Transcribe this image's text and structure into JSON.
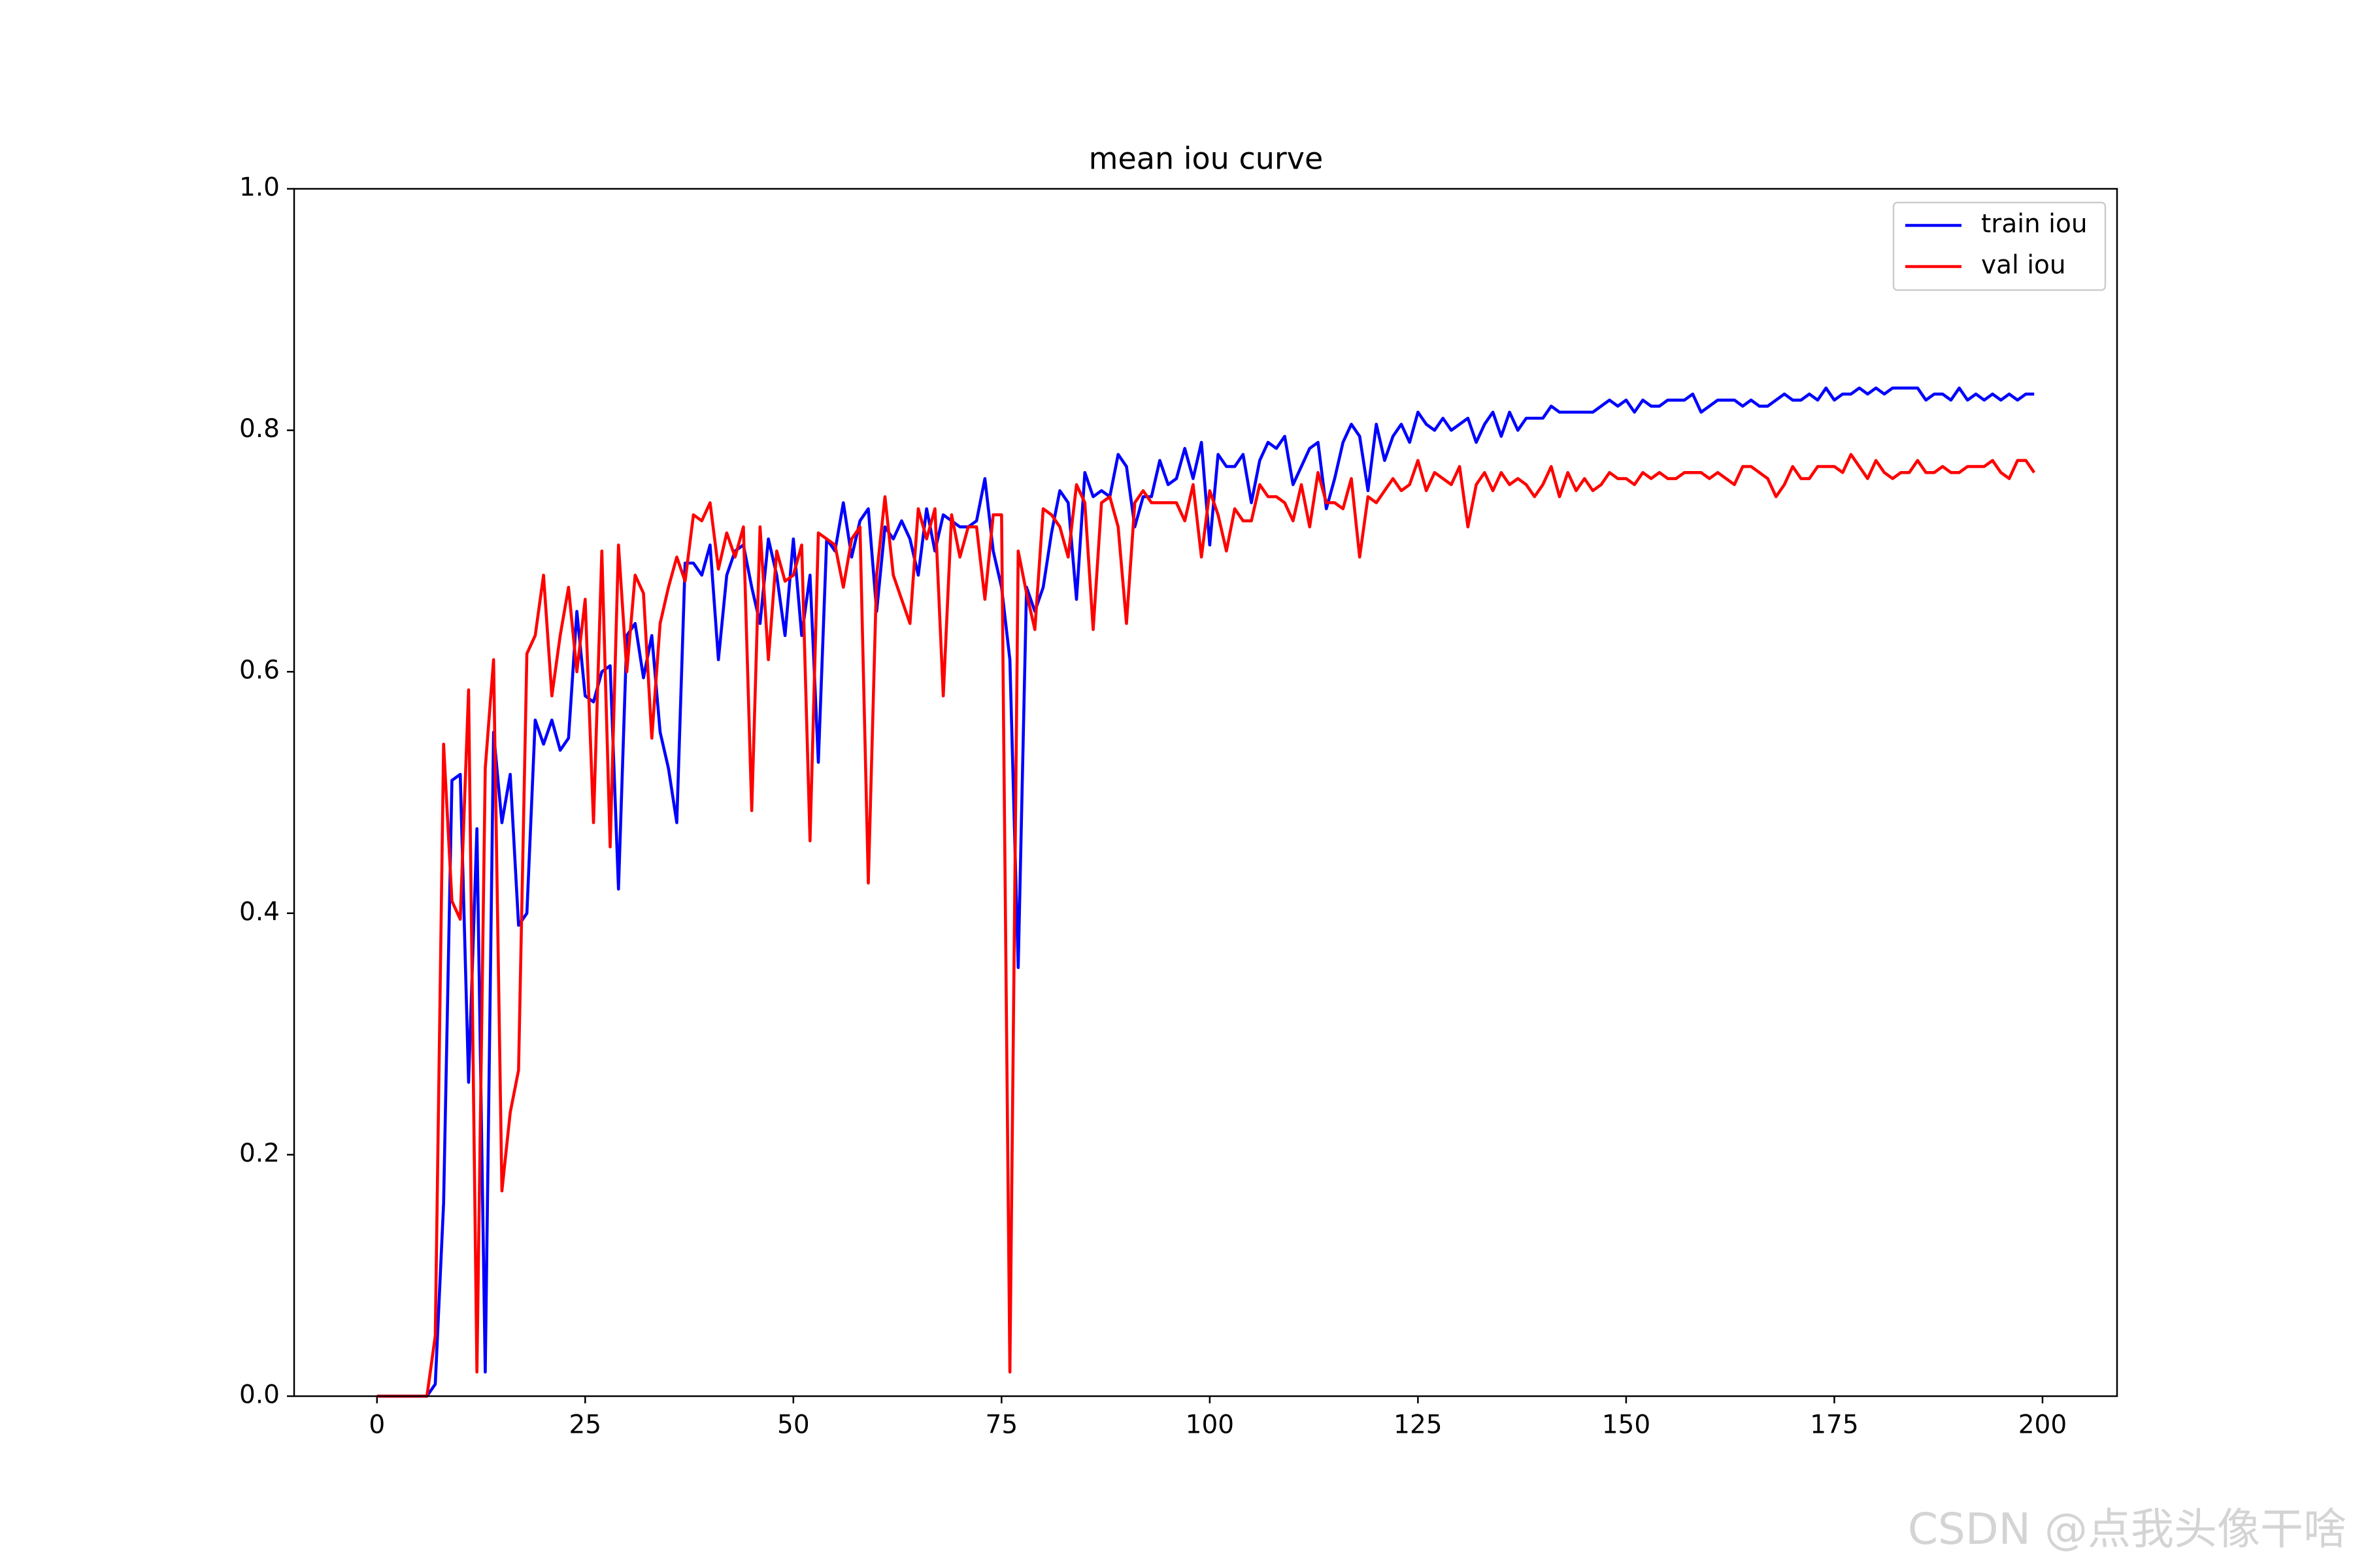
{
  "chart_data": {
    "type": "line",
    "title": "mean iou curve",
    "x": [
      0,
      1,
      2,
      3,
      4,
      5,
      6,
      7,
      8,
      9,
      10,
      11,
      12,
      13,
      14,
      15,
      16,
      17,
      18,
      19,
      20,
      21,
      22,
      23,
      24,
      25,
      26,
      27,
      28,
      29,
      30,
      31,
      32,
      33,
      34,
      35,
      36,
      37,
      38,
      39,
      40,
      41,
      42,
      43,
      44,
      45,
      46,
      47,
      48,
      49,
      50,
      51,
      52,
      53,
      54,
      55,
      56,
      57,
      58,
      59,
      60,
      61,
      62,
      63,
      64,
      65,
      66,
      67,
      68,
      69,
      70,
      71,
      72,
      73,
      74,
      75,
      76,
      77,
      78,
      79,
      80,
      81,
      82,
      83,
      84,
      85,
      86,
      87,
      88,
      89,
      90,
      91,
      92,
      93,
      94,
      95,
      96,
      97,
      98,
      99,
      100,
      101,
      102,
      103,
      104,
      105,
      106,
      107,
      108,
      109,
      110,
      111,
      112,
      113,
      114,
      115,
      116,
      117,
      118,
      119,
      120,
      121,
      122,
      123,
      124,
      125,
      126,
      127,
      128,
      129,
      130,
      131,
      132,
      133,
      134,
      135,
      136,
      137,
      138,
      139,
      140,
      141,
      142,
      143,
      144,
      145,
      146,
      147,
      148,
      149,
      150,
      151,
      152,
      153,
      154,
      155,
      156,
      157,
      158,
      159,
      160,
      161,
      162,
      163,
      164,
      165,
      166,
      167,
      168,
      169,
      170,
      171,
      172,
      173,
      174,
      175,
      176,
      177,
      178,
      179,
      180,
      181,
      182,
      183,
      184,
      185,
      186,
      187,
      188,
      189,
      190,
      191,
      192,
      193,
      194,
      195,
      196,
      197,
      198,
      199
    ],
    "series": [
      {
        "name": "train iou",
        "color": "#0000ff",
        "values": [
          0,
          0,
          0,
          0,
          0,
          0,
          0,
          0.01,
          0.16,
          0.51,
          0.515,
          0.26,
          0.47,
          0.02,
          0.55,
          0.475,
          0.515,
          0.39,
          0.4,
          0.56,
          0.54,
          0.56,
          0.535,
          0.545,
          0.65,
          0.58,
          0.575,
          0.6,
          0.605,
          0.42,
          0.63,
          0.64,
          0.595,
          0.63,
          0.55,
          0.52,
          0.475,
          0.69,
          0.69,
          0.68,
          0.705,
          0.61,
          0.68,
          0.7,
          0.705,
          0.67,
          0.64,
          0.71,
          0.68,
          0.63,
          0.71,
          0.63,
          0.68,
          0.525,
          0.71,
          0.7,
          0.74,
          0.695,
          0.725,
          0.735,
          0.65,
          0.72,
          0.71,
          0.725,
          0.71,
          0.68,
          0.735,
          0.7,
          0.73,
          0.725,
          0.72,
          0.72,
          0.725,
          0.76,
          0.7,
          0.67,
          0.61,
          0.355,
          0.67,
          0.65,
          0.67,
          0.715,
          0.75,
          0.74,
          0.66,
          0.765,
          0.745,
          0.75,
          0.745,
          0.78,
          0.77,
          0.72,
          0.745,
          0.745,
          0.775,
          0.755,
          0.76,
          0.785,
          0.76,
          0.79,
          0.705,
          0.78,
          0.77,
          0.77,
          0.78,
          0.74,
          0.775,
          0.79,
          0.785,
          0.795,
          0.755,
          0.77,
          0.785,
          0.79,
          0.735,
          0.76,
          0.79,
          0.805,
          0.795,
          0.75,
          0.805,
          0.775,
          0.795,
          0.805,
          0.79,
          0.815,
          0.805,
          0.8,
          0.81,
          0.8,
          0.805,
          0.81,
          0.79,
          0.805,
          0.815,
          0.795,
          0.815,
          0.8,
          0.81,
          0.81,
          0.81,
          0.82,
          0.815,
          0.815,
          0.815,
          0.815,
          0.815,
          0.82,
          0.825,
          0.82,
          0.825,
          0.815,
          0.825,
          0.82,
          0.82,
          0.825,
          0.825,
          0.825,
          0.83,
          0.815,
          0.82,
          0.825,
          0.825,
          0.825,
          0.82,
          0.825,
          0.82,
          0.82,
          0.825,
          0.83,
          0.825,
          0.825,
          0.83,
          0.825,
          0.835,
          0.825,
          0.83,
          0.83,
          0.835,
          0.83,
          0.835,
          0.83,
          0.835,
          0.835,
          0.835,
          0.835,
          0.825,
          0.83,
          0.83,
          0.825,
          0.835,
          0.825,
          0.83,
          0.825,
          0.83,
          0.825,
          0.83,
          0.825,
          0.83,
          0.83
        ]
      },
      {
        "name": "val iou",
        "color": "#ff0000",
        "values": [
          0,
          0,
          0,
          0,
          0,
          0,
          0,
          0.05,
          0.54,
          0.41,
          0.395,
          0.585,
          0.02,
          0.52,
          0.61,
          0.17,
          0.235,
          0.27,
          0.615,
          0.63,
          0.68,
          0.58,
          0.63,
          0.67,
          0.6,
          0.66,
          0.475,
          0.7,
          0.455,
          0.705,
          0.6,
          0.68,
          0.665,
          0.545,
          0.64,
          0.67,
          0.695,
          0.675,
          0.73,
          0.725,
          0.74,
          0.685,
          0.715,
          0.695,
          0.72,
          0.485,
          0.72,
          0.61,
          0.7,
          0.675,
          0.68,
          0.705,
          0.46,
          0.715,
          0.71,
          0.705,
          0.67,
          0.71,
          0.72,
          0.425,
          0.68,
          0.745,
          0.68,
          0.66,
          0.64,
          0.735,
          0.71,
          0.735,
          0.58,
          0.73,
          0.695,
          0.72,
          0.72,
          0.66,
          0.73,
          0.73,
          0.02,
          0.7,
          0.665,
          0.635,
          0.735,
          0.73,
          0.72,
          0.695,
          0.755,
          0.74,
          0.635,
          0.74,
          0.745,
          0.72,
          0.64,
          0.74,
          0.75,
          0.74,
          0.74,
          0.74,
          0.74,
          0.725,
          0.755,
          0.695,
          0.75,
          0.73,
          0.7,
          0.735,
          0.725,
          0.725,
          0.755,
          0.745,
          0.745,
          0.74,
          0.725,
          0.755,
          0.72,
          0.765,
          0.74,
          0.74,
          0.735,
          0.76,
          0.695,
          0.745,
          0.74,
          0.75,
          0.76,
          0.75,
          0.755,
          0.775,
          0.75,
          0.765,
          0.76,
          0.755,
          0.77,
          0.72,
          0.755,
          0.765,
          0.75,
          0.765,
          0.755,
          0.76,
          0.755,
          0.745,
          0.755,
          0.77,
          0.745,
          0.765,
          0.75,
          0.76,
          0.75,
          0.755,
          0.765,
          0.76,
          0.76,
          0.755,
          0.765,
          0.76,
          0.765,
          0.76,
          0.76,
          0.765,
          0.765,
          0.765,
          0.76,
          0.765,
          0.76,
          0.755,
          0.77,
          0.77,
          0.765,
          0.76,
          0.745,
          0.755,
          0.77,
          0.76,
          0.76,
          0.77,
          0.77,
          0.77,
          0.765,
          0.78,
          0.77,
          0.76,
          0.775,
          0.765,
          0.76,
          0.765,
          0.765,
          0.775,
          0.765,
          0.765,
          0.77,
          0.765,
          0.765,
          0.77,
          0.77,
          0.77,
          0.775,
          0.765,
          0.76,
          0.775,
          0.775,
          0.765
        ]
      }
    ],
    "xlim": [
      -9.95,
      208.95
    ],
    "xticks": [
      0,
      25,
      50,
      75,
      100,
      125,
      150,
      175,
      200
    ],
    "ylim": [
      0,
      1
    ],
    "yticks": [
      {
        "value": 0,
        "label": "0.0"
      },
      0.2,
      0.4,
      0.6,
      0.8,
      {
        "value": 1,
        "label": "1.0"
      }
    ],
    "legend": "upper right",
    "grid": false,
    "watermark": "CSDN @点我头像干啥"
  }
}
